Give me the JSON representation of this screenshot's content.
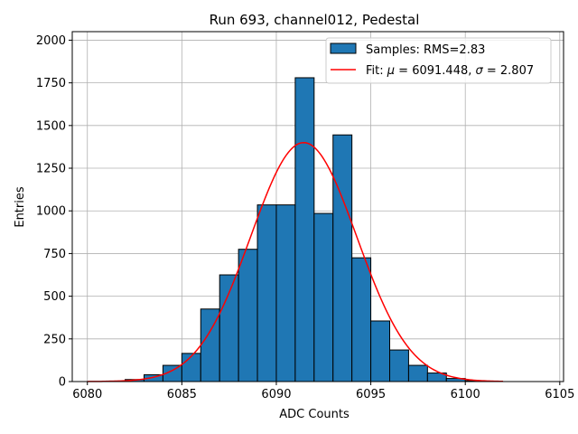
{
  "chart_data": {
    "type": "bar",
    "title": "Run 693, channel012, Pedestal",
    "xlabel": "ADC Counts",
    "ylabel": "Entries",
    "xlim": [
      6079.2,
      6105.2
    ],
    "ylim": [
      0,
      2050
    ],
    "xticks": [
      6080,
      6085,
      6090,
      6095,
      6100,
      6105
    ],
    "yticks": [
      0,
      250,
      500,
      750,
      1000,
      1250,
      1500,
      1750,
      2000
    ],
    "grid": true,
    "legend_position": "top-right",
    "bin_width": 1,
    "bins": [
      {
        "x0": 6081,
        "count": 3
      },
      {
        "x0": 6082,
        "count": 12
      },
      {
        "x0": 6083,
        "count": 40
      },
      {
        "x0": 6084,
        "count": 95
      },
      {
        "x0": 6085,
        "count": 165
      },
      {
        "x0": 6086,
        "count": 425
      },
      {
        "x0": 6087,
        "count": 625
      },
      {
        "x0": 6088,
        "count": 775
      },
      {
        "x0": 6089,
        "count": 1035
      },
      {
        "x0": 6090,
        "count": 1035
      },
      {
        "x0": 6091,
        "count": 1780
      },
      {
        "x0": 6092,
        "count": 985
      },
      {
        "x0": 6093,
        "count": 1445
      },
      {
        "x0": 6094,
        "count": 725
      },
      {
        "x0": 6095,
        "count": 355
      },
      {
        "x0": 6096,
        "count": 185
      },
      {
        "x0": 6097,
        "count": 95
      },
      {
        "x0": 6098,
        "count": 50
      },
      {
        "x0": 6099,
        "count": 18
      },
      {
        "x0": 6100,
        "count": 5
      }
    ],
    "fit": {
      "mu": 6091.448,
      "sigma": 2.807,
      "amplitude": 1400,
      "x_range": [
        6080,
        6102
      ]
    },
    "series": [
      {
        "name": "Samples: RMS=2.83",
        "color": "#1f77b4"
      },
      {
        "name_prefix": "Fit: ",
        "mu_symbol": "μ",
        "mu_text": " = 6091.448, ",
        "sigma_symbol": "σ",
        "sigma_text": " = 2.807",
        "color": "#ff0000"
      }
    ]
  }
}
